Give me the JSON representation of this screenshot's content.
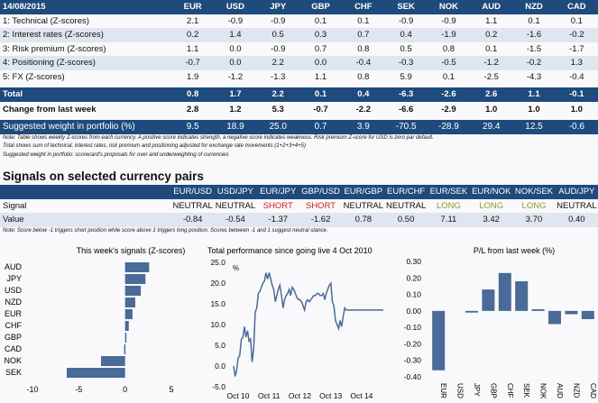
{
  "scorecard": {
    "date": "14/08/2015",
    "currencies": [
      "EUR",
      "USD",
      "JPY",
      "GBP",
      "CHF",
      "SEK",
      "NOK",
      "AUD",
      "NZD",
      "CAD"
    ],
    "rows": [
      {
        "label": "1: Technical (Z-scores)",
        "values": [
          "2.1",
          "-0.9",
          "-0.9",
          "0.1",
          "0.1",
          "-0.9",
          "-0.9",
          "1.1",
          "0.1",
          "0.1"
        ]
      },
      {
        "label": "2: Interest rates (Z-scores)",
        "values": [
          "0.2",
          "1.4",
          "0.5",
          "0.3",
          "0.7",
          "0.4",
          "-1.9",
          "0.2",
          "-1.6",
          "-0.2"
        ]
      },
      {
        "label": "3: Risk premium (Z-scores)",
        "values": [
          "1.1",
          "0.0",
          "-0.9",
          "0.7",
          "0.8",
          "0.5",
          "0.8",
          "0.1",
          "-1.5",
          "-1.7"
        ]
      },
      {
        "label": "4: Positioning (Z-scores)",
        "values": [
          "-0.7",
          "0.0",
          "2.2",
          "0.0",
          "-0.4",
          "-0.3",
          "-0.5",
          "-1.2",
          "-0.2",
          "1.3"
        ]
      },
      {
        "label": "5: FX (Z-scores)",
        "values": [
          "1.9",
          "-1.2",
          "-1.3",
          "1.1",
          "0.8",
          "5.9",
          "0.1",
          "-2.5",
          "-4.3",
          "-0.4"
        ]
      }
    ],
    "total": {
      "label": "Total",
      "values": [
        "0.8",
        "1.7",
        "2.2",
        "0.1",
        "0.4",
        "-6.3",
        "-2.6",
        "2.6",
        "1.1",
        "-0.1"
      ]
    },
    "change": {
      "label": "Change from last week",
      "values": [
        "2.8",
        "1.2",
        "5.3",
        "-0.7",
        "-2.2",
        "-6.6",
        "-2.9",
        "1.0",
        "1.0",
        "1.0"
      ]
    },
    "weight": {
      "label": "Suggested weight in portfolio (%)",
      "values": [
        "9.5",
        "18.9",
        "25.0",
        "0.7",
        "3.9",
        "-70.5",
        "-28.9",
        "29.4",
        "12.5",
        "-0.6"
      ]
    },
    "notes": [
      "Note: Table shows weekly Z-scores from each currency. A positive score indicates strength, a negative score indicates weakness. Risk premium Z-score for USD is zero par default.",
      "Total shows sum of technical, interest rates, risk premium and positioning adjusted for exchange rate movements (1+2+3+4+5)",
      "Suggested weight in portfolio: scorecard's proposals for over and underweighting of currencies"
    ]
  },
  "signals": {
    "title": "Signals on selected currency pairs",
    "pairs": [
      "EUR/USD",
      "USD/JPY",
      "EUR/JPY",
      "GBP/USD",
      "EUR/GBP",
      "EUR/CHF",
      "EUR/SEK",
      "EUR/NOK",
      "NOK/SEK",
      "AUD/JPY"
    ],
    "signal_label": "Signal",
    "signals": [
      "NEUTRAL",
      "NEUTRAL",
      "SHORT",
      "SHORT",
      "NEUTRAL",
      "NEUTRAL",
      "LONG",
      "LONG",
      "LONG",
      "NEUTRAL"
    ],
    "value_label": "Value",
    "values": [
      "-0.84",
      "-0.54",
      "-1.37",
      "-1.62",
      "0.78",
      "0.50",
      "7.11",
      "3.42",
      "3.70",
      "0.40"
    ],
    "note": "Note: Score below -1 triggers short position while score above 1 triggers long position. Scores between -1 and 1 suggest neutral stance.",
    "colors": {
      "SHORT": "#cc1f1f",
      "LONG": "#8c9a34",
      "NEUTRAL": "#111111"
    }
  },
  "chart_data": [
    {
      "type": "bar",
      "orientation": "horizontal",
      "title": "This week's signals (Z-scores)",
      "categories": [
        "AUD",
        "JPY",
        "USD",
        "NZD",
        "EUR",
        "CHF",
        "GBP",
        "CAD",
        "NOK",
        "SEK"
      ],
      "values": [
        2.6,
        2.2,
        1.7,
        1.1,
        0.8,
        0.4,
        0.1,
        -0.1,
        -2.6,
        -6.3
      ],
      "xlim": [
        -10,
        5
      ],
      "xticks": [
        "-10",
        "-5",
        "0",
        "5"
      ],
      "color": "#4a6a97"
    },
    {
      "type": "line",
      "title": "Total performance since going live 4 Oct 2010",
      "ylabel": "%",
      "ylim": [
        -5,
        25
      ],
      "yticks": [
        "25.0",
        "20.0",
        "15.0",
        "10.0",
        "5.0",
        "0.0",
        "-5.0"
      ],
      "xticks": [
        "Oct 10",
        "Oct 11",
        "Oct 12",
        "Oct 13",
        "Oct 14"
      ],
      "x": [
        0,
        0.05,
        0.1,
        0.15,
        0.2,
        0.25,
        0.3,
        0.35,
        0.4,
        0.45,
        0.5,
        0.55,
        0.6,
        0.65,
        0.7,
        0.75,
        0.8,
        0.85,
        0.9,
        0.95,
        1.0,
        1.05,
        1.1,
        1.15,
        1.2,
        1.25,
        1.3,
        1.35,
        1.4,
        1.45,
        1.5,
        1.55,
        1.6,
        1.65,
        1.7,
        1.75,
        1.8,
        1.85,
        1.9,
        1.95,
        2.0,
        2.05,
        2.1,
        2.15,
        2.2,
        2.25,
        2.3,
        2.35,
        2.4,
        2.45,
        2.5,
        2.55,
        2.6,
        2.65,
        2.7,
        2.75,
        2.8,
        2.85,
        2.9,
        2.95,
        3.0,
        3.05,
        3.1,
        3.15,
        3.2,
        3.25,
        3.3,
        3.35,
        3.4,
        3.45,
        3.5,
        3.55,
        3.6,
        3.65,
        3.7,
        3.75,
        3.8,
        3.85,
        3.9,
        3.95,
        4.0,
        4.05,
        4.1,
        4.15,
        4.2,
        4.25,
        4.3,
        4.35,
        4.4,
        4.45,
        4.5,
        4.55,
        4.6,
        4.65,
        4.7,
        4.75,
        4.8,
        4.85
      ],
      "values": [
        0,
        -2.5,
        -1,
        2,
        2.5,
        6.5,
        7,
        9.5,
        7,
        8.5,
        6,
        6.5,
        1,
        4,
        13,
        14,
        17.5,
        18,
        19,
        20,
        20.5,
        22.5,
        21,
        22.5,
        21,
        19.5,
        18.5,
        15.5,
        17,
        18.5,
        19.5,
        17,
        14,
        16,
        17,
        17.5,
        18.5,
        17,
        19,
        18.5,
        17.5,
        16.5,
        16,
        16,
        15.5,
        14.5,
        13.5,
        15.5,
        16,
        15.5,
        16,
        16.5,
        17,
        17,
        17.5,
        17.5,
        17,
        17,
        17.5,
        16,
        17.5,
        18.5,
        19.5,
        20,
        15.5,
        14.5,
        11,
        10,
        9,
        11,
        9.5,
        12,
        14,
        13.5,
        13.5,
        13.5,
        13.5,
        13.5,
        13.5,
        13.5,
        13.5,
        13.5,
        13.5,
        13.5,
        13.5,
        13.5,
        13.5,
        13.5,
        13.5,
        13.5,
        13.5,
        13.5,
        13.5,
        13.5,
        13.5,
        13.5,
        13.5,
        13.5
      ],
      "color": "#4a6a97"
    },
    {
      "type": "bar",
      "title": "P/L from last week (%)",
      "categories": [
        "EUR",
        "USD",
        "JPY",
        "GBP",
        "CHF",
        "SEK",
        "NOK",
        "AUD",
        "NZD",
        "CAD"
      ],
      "values": [
        -0.36,
        0.0,
        -0.01,
        0.13,
        0.23,
        0.18,
        0.01,
        -0.08,
        -0.02,
        -0.05
      ],
      "ylim": [
        -0.4,
        0.3
      ],
      "yticks": [
        "0.30",
        "0.20",
        "0.10",
        "0.00",
        "-0.10",
        "-0.20",
        "-0.30",
        "-0.40"
      ],
      "color": "#4a6a97"
    }
  ]
}
